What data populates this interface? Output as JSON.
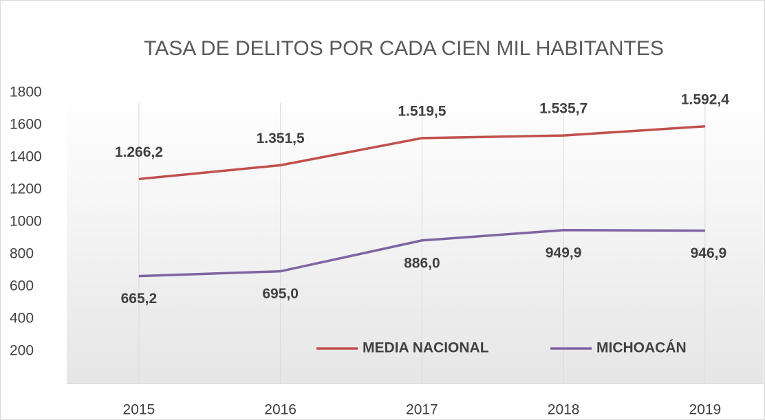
{
  "chart_data": {
    "type": "line",
    "title": "TASA DE DELITOS POR CADA CIEN MIL HABITANTES",
    "categories": [
      "2015",
      "2016",
      "2017",
      "2018",
      "2019"
    ],
    "series": [
      {
        "name": "MEDIA NACIONAL",
        "color": "#c0504d",
        "values": [
          1266.2,
          1351.5,
          1519.5,
          1535.7,
          1592.4
        ],
        "value_labels": [
          "1.266,2",
          "1.351,5",
          "1.519,5",
          "1.535,7",
          "1.592,4"
        ]
      },
      {
        "name": "MICHOACÁN",
        "color": "#8064a2",
        "values": [
          665.2,
          695.0,
          886.0,
          949.9,
          946.9
        ],
        "value_labels": [
          "665,2",
          "695,0",
          "886,0",
          "949,9",
          "946,9"
        ]
      }
    ],
    "ylim": [
      0,
      1800
    ],
    "yticks": [
      200,
      400,
      600,
      800,
      1000,
      1200,
      1400,
      1600,
      1800
    ],
    "xgrid": true,
    "legend": "bottom"
  }
}
